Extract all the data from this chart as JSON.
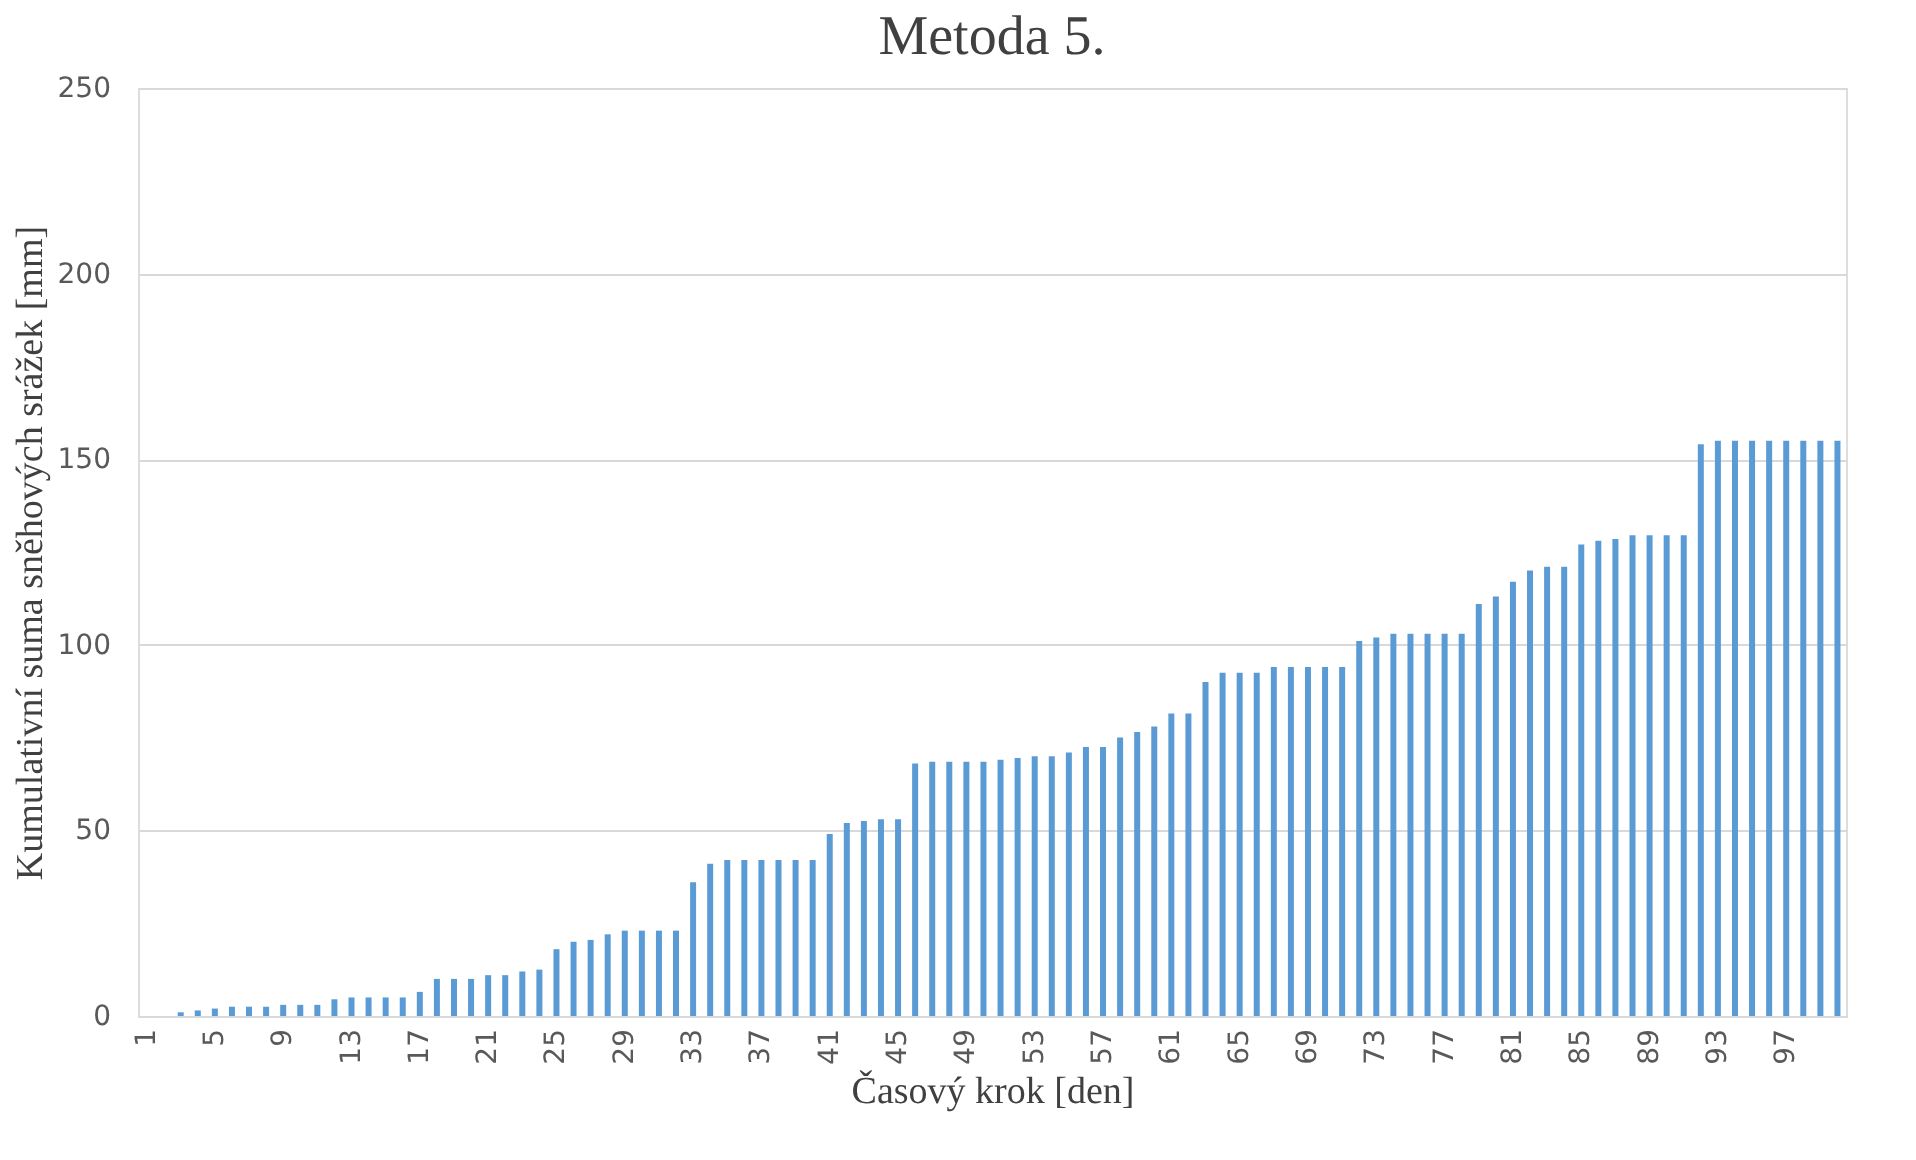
{
  "chart_data": {
    "type": "bar",
    "title": "Metoda 5.",
    "xlabel": "Časový krok [den]",
    "ylabel": "Kumulativní suma sněhových srážek [mm]",
    "categories": [
      "1",
      null,
      null,
      null,
      "5",
      null,
      null,
      null,
      "9",
      null,
      null,
      null,
      "13",
      null,
      null,
      null,
      "17",
      null,
      null,
      null,
      "21",
      null,
      null,
      null,
      "25",
      null,
      null,
      null,
      "29",
      null,
      null,
      null,
      "33",
      null,
      null,
      null,
      "37",
      null,
      null,
      null,
      "41",
      null,
      null,
      null,
      "45",
      null,
      null,
      null,
      "49",
      null,
      null,
      null,
      "53",
      null,
      null,
      null,
      "57",
      null,
      null,
      null,
      "61",
      null,
      null,
      null,
      "65",
      null,
      null,
      null,
      "69",
      null,
      null,
      null,
      "73",
      null,
      null,
      null,
      "77",
      null,
      null,
      null,
      "81",
      null,
      null,
      null,
      "85",
      null,
      null,
      null,
      "89",
      null,
      null,
      null,
      "93",
      null,
      null,
      null,
      "97",
      null,
      null,
      null
    ],
    "values": [
      0,
      0,
      1,
      1.5,
      2,
      2.5,
      2.5,
      2.5,
      3,
      3,
      3,
      4.5,
      5,
      5,
      5,
      5,
      6.5,
      10,
      10,
      10,
      11,
      11,
      12,
      12.5,
      18,
      20,
      20.5,
      22,
      23,
      23,
      23,
      23,
      36,
      41,
      42,
      42,
      42,
      42,
      42,
      42,
      49,
      52,
      52.5,
      53,
      53,
      68,
      68.5,
      68.5,
      68.5,
      68.5,
      69,
      69.5,
      70,
      70,
      71,
      72.5,
      72.5,
      75,
      76.5,
      78,
      81.5,
      81.5,
      90,
      92.5,
      92.5,
      92.5,
      94,
      94,
      94,
      94,
      94,
      101,
      102,
      103,
      103,
      103,
      103,
      103,
      111,
      113,
      117,
      120,
      121,
      121,
      127,
      128,
      128.5,
      129.5,
      129.5,
      129.5,
      129.5,
      154,
      155,
      155,
      155,
      155,
      155,
      155,
      155,
      155
    ],
    "color": "#5b9bd5",
    "ylim": [
      0,
      250
    ],
    "yticks": [
      0,
      50,
      100,
      150,
      200,
      250
    ],
    "grid": "y"
  }
}
